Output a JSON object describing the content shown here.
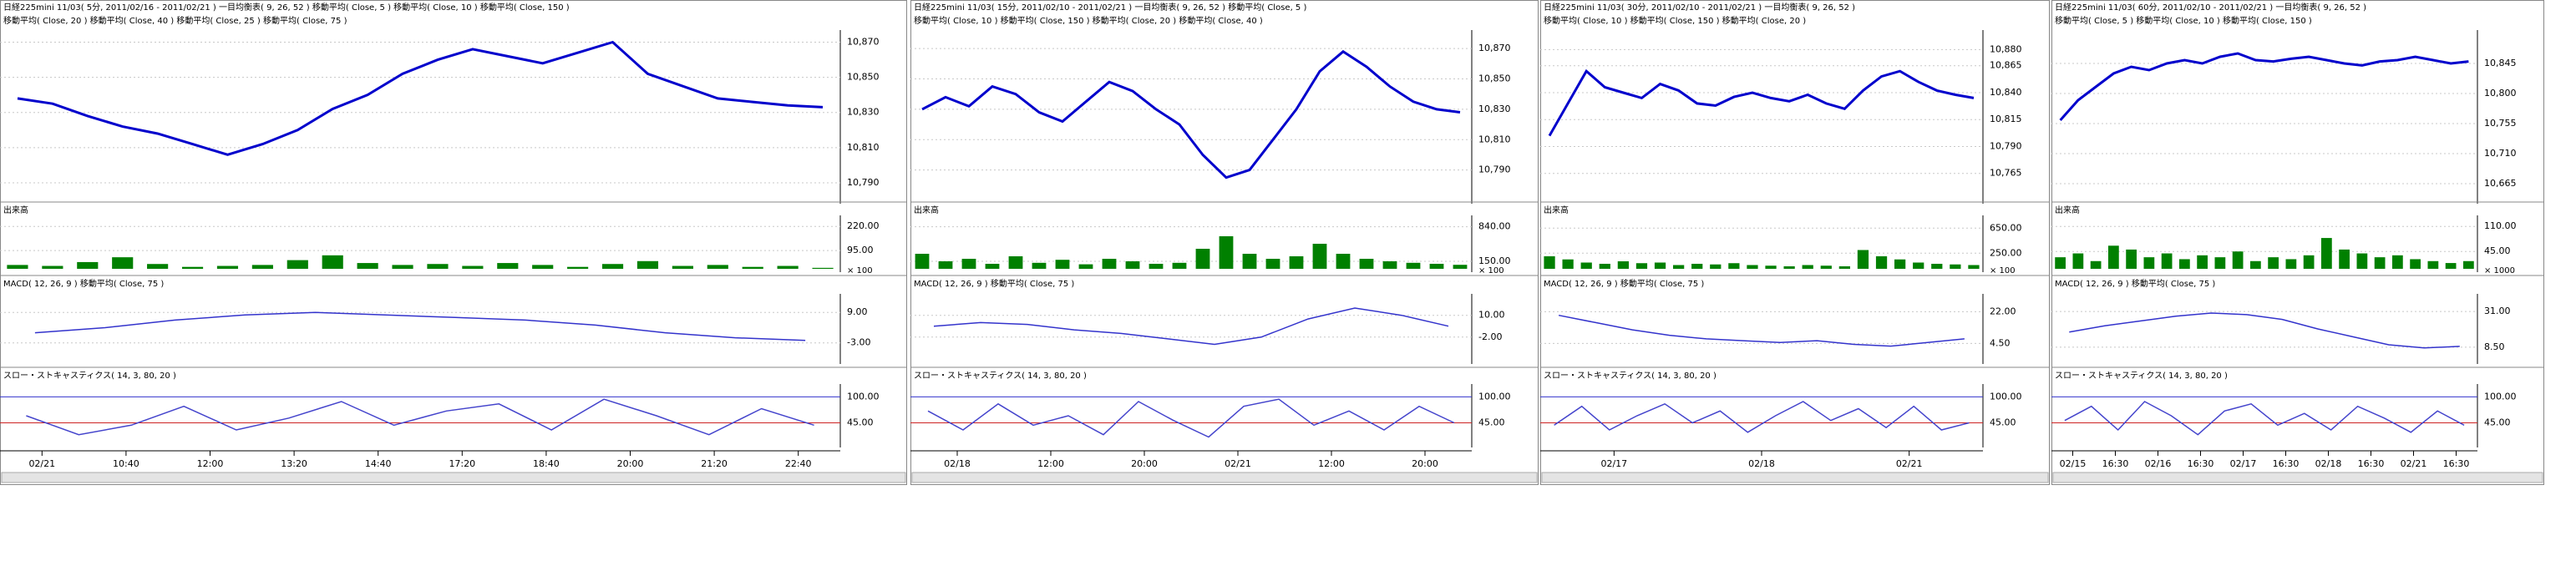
{
  "colors": {
    "price": "#0000cc",
    "volume": "#008000",
    "macd": "#3333cc",
    "stoch": "#4444cc"
  },
  "panels": [
    {
      "header": [
        "日経225mini 11/03( 5分, 2011/02/16 - 2011/02/21 )   一目均衡表( 9, 26, 52 )   移動平均( Close, 5 )   移動平均( Close, 10 )   移動平均( Close, 150 )",
        "移動平均( Close, 20 )   移動平均( Close, 40 )   移動平均( Close, 25 )   移動平均( Close, 75 )"
      ],
      "price": {
        "ylim": [
          10780,
          10875
        ],
        "yticks": [
          {
            "value": 10870,
            "label": "10,870"
          },
          {
            "value": 10850,
            "label": "10,850"
          },
          {
            "value": 10830,
            "label": "10,830"
          },
          {
            "value": 10810,
            "label": "10,810"
          },
          {
            "value": 10790,
            "label": "10,790"
          }
        ],
        "values": [
          10838,
          10835,
          10828,
          10822,
          10818,
          10812,
          10806,
          10812,
          10820,
          10832,
          10840,
          10852,
          10860,
          10866,
          10862,
          10858,
          10864,
          10870,
          10852,
          10845,
          10838,
          10836,
          10834,
          10833
        ]
      },
      "volume": {
        "label": "出来高",
        "unit": "× 100",
        "ylim": [
          0,
          260
        ],
        "yticks": [
          {
            "value": 220,
            "label": "220.00"
          },
          {
            "value": 95,
            "label": "95.00"
          }
        ],
        "values": [
          20,
          15,
          35,
          60,
          25,
          10,
          15,
          20,
          45,
          70,
          30,
          20,
          25,
          15,
          30,
          20,
          10,
          25,
          40,
          15,
          20,
          10,
          15,
          5
        ]
      },
      "macd": {
        "label": "MACD( 12, 26, 9 )   移動平均( Close, 75 )",
        "ylim": [
          -10,
          15
        ],
        "yticks": [
          {
            "value": 9,
            "label": "9.00"
          },
          {
            "value": -3,
            "label": "-3.00"
          }
        ],
        "values": [
          1,
          3,
          6,
          8,
          9,
          8,
          7,
          6,
          4,
          1,
          -1,
          -2
        ]
      },
      "stoch": {
        "label": "スロー・ストキャスティクス( 14, 3, 80, 20 )",
        "ylim": [
          0,
          120
        ],
        "yticks": [
          {
            "value": 100,
            "label": "100.00"
          },
          {
            "value": 45,
            "label": "45.00"
          }
        ],
        "values": [
          60,
          20,
          40,
          80,
          30,
          55,
          90,
          40,
          70,
          85,
          30,
          95,
          60,
          20,
          75,
          40
        ]
      },
      "xlabels": [
        "02/21",
        "10:40",
        "12:00",
        "13:20",
        "14:40",
        "17:20",
        "18:40",
        "20:00",
        "21:20",
        "22:40"
      ]
    },
    {
      "header": [
        "日経225mini 11/03( 15分, 2011/02/10 - 2011/02/21 )   一目均衡表( 9, 26, 52 )   移動平均( Close, 5 )",
        "移動平均( Close, 10 )   移動平均( Close, 150 )   移動平均( Close, 20 )   移動平均( Close, 40 )"
      ],
      "price": {
        "ylim": [
          10770,
          10880
        ],
        "yticks": [
          {
            "value": 10870,
            "label": "10,870"
          },
          {
            "value": 10850,
            "label": "10,850"
          },
          {
            "value": 10830,
            "label": "10,830"
          },
          {
            "value": 10810,
            "label": "10,810"
          },
          {
            "value": 10790,
            "label": "10,790"
          }
        ],
        "values": [
          10830,
          10838,
          10832,
          10845,
          10840,
          10828,
          10822,
          10835,
          10848,
          10842,
          10830,
          10820,
          10800,
          10785,
          10790,
          10810,
          10830,
          10855,
          10868,
          10858,
          10845,
          10835,
          10830,
          10828
        ]
      },
      "volume": {
        "label": "出来高",
        "unit": "× 100",
        "ylim": [
          0,
          1000
        ],
        "yticks": [
          {
            "value": 840,
            "label": "840.00"
          },
          {
            "value": 150,
            "label": "150.00"
          }
        ],
        "values": [
          300,
          150,
          200,
          100,
          250,
          120,
          180,
          90,
          200,
          150,
          100,
          120,
          400,
          650,
          300,
          200,
          250,
          500,
          300,
          200,
          150,
          120,
          100,
          80
        ]
      },
      "macd": {
        "label": "MACD( 12, 26, 9 )   移動平均( Close, 75 )",
        "ylim": [
          -15,
          20
        ],
        "yticks": [
          {
            "value": 10,
            "label": "10.00"
          },
          {
            "value": -2,
            "label": "-2.00"
          }
        ],
        "values": [
          4,
          6,
          5,
          2,
          0,
          -3,
          -6,
          -2,
          8,
          14,
          10,
          4
        ]
      },
      "stoch": {
        "label": "スロー・ストキャスティクス( 14, 3, 80, 20 )",
        "ylim": [
          0,
          120
        ],
        "yticks": [
          {
            "value": 100,
            "label": "100.00"
          },
          {
            "value": 45,
            "label": "45.00"
          }
        ],
        "values": [
          70,
          30,
          85,
          40,
          60,
          20,
          90,
          50,
          15,
          80,
          95,
          40,
          70,
          30,
          80,
          45
        ]
      },
      "xlabels": [
        "02/18",
        "12:00",
        "20:00",
        "02/21",
        "12:00",
        "20:00"
      ]
    },
    {
      "header": [
        "日経225mini 11/03( 30分, 2011/02/10 - 2011/02/21 )   一目均衡表( 9, 26, 52 )",
        "移動平均( Close, 10 )   移動平均( Close, 150 )   移動平均( Close, 20 )"
      ],
      "price": {
        "ylim": [
          10740,
          10895
        ],
        "yticks": [
          {
            "value": 10880,
            "label": "10,880"
          },
          {
            "value": 10865,
            "label": "10,865"
          },
          {
            "value": 10840,
            "label": "10,840"
          },
          {
            "value": 10815,
            "label": "10,815"
          },
          {
            "value": 10790,
            "label": "10,790"
          },
          {
            "value": 10765,
            "label": "10,765"
          }
        ],
        "values": [
          10800,
          10830,
          10860,
          10845,
          10840,
          10835,
          10848,
          10842,
          10830,
          10828,
          10836,
          10840,
          10835,
          10832,
          10838,
          10830,
          10825,
          10842,
          10855,
          10860,
          10850,
          10842,
          10838,
          10835
        ]
      },
      "volume": {
        "label": "出来高",
        "unit": "× 100",
        "ylim": [
          0,
          800
        ],
        "yticks": [
          {
            "value": 650,
            "label": "650.00"
          },
          {
            "value": 250,
            "label": "250.00"
          }
        ],
        "values": [
          200,
          150,
          100,
          80,
          120,
          90,
          100,
          60,
          80,
          70,
          90,
          60,
          50,
          40,
          60,
          50,
          40,
          300,
          200,
          150,
          100,
          80,
          70,
          60
        ]
      },
      "macd": {
        "label": "MACD( 12, 26, 9 )   移動平均( Close, 75 )",
        "ylim": [
          -5,
          30
        ],
        "yticks": [
          {
            "value": 22,
            "label": "22.00"
          },
          {
            "value": 4.5,
            "label": "4.50"
          }
        ],
        "values": [
          20,
          16,
          12,
          9,
          7,
          6,
          5,
          6,
          4,
          3,
          5,
          7
        ]
      },
      "stoch": {
        "label": "スロー・ストキャスティクス( 14, 3, 80, 20 )",
        "ylim": [
          0,
          120
        ],
        "yticks": [
          {
            "value": 100,
            "label": "100.00"
          },
          {
            "value": 45,
            "label": "45.00"
          }
        ],
        "values": [
          40,
          80,
          30,
          60,
          85,
          45,
          70,
          25,
          60,
          90,
          50,
          75,
          35,
          80,
          30,
          45
        ]
      },
      "xlabels": [
        "02/17",
        "02/18",
        "02/21"
      ]
    },
    {
      "header": [
        "日経225mini 11/03( 60分, 2011/02/10 - 2011/02/21 )   一目均衡表( 9, 26, 52 )",
        "移動平均( Close, 5 )   移動平均( Close, 10 )   移動平均( Close, 150 )"
      ],
      "price": {
        "ylim": [
          10640,
          10890
        ],
        "yticks": [
          {
            "value": 10845,
            "label": "10,845"
          },
          {
            "value": 10800,
            "label": "10,800"
          },
          {
            "value": 10755,
            "label": "10,755"
          },
          {
            "value": 10710,
            "label": "10,710"
          },
          {
            "value": 10665,
            "label": "10,665"
          }
        ],
        "values": [
          10760,
          10790,
          10810,
          10830,
          10840,
          10835,
          10845,
          10850,
          10845,
          10855,
          10860,
          10850,
          10848,
          10852,
          10855,
          10850,
          10845,
          10842,
          10848,
          10850,
          10855,
          10850,
          10845,
          10848
        ]
      },
      "volume": {
        "label": "出来高",
        "unit": "× 1000",
        "ylim": [
          0,
          130
        ],
        "yticks": [
          {
            "value": 110,
            "label": "110.00"
          },
          {
            "value": 45,
            "label": "45.00"
          }
        ],
        "values": [
          30,
          40,
          20,
          60,
          50,
          30,
          40,
          25,
          35,
          30,
          45,
          20,
          30,
          25,
          35,
          80,
          50,
          40,
          30,
          35,
          25,
          20,
          15,
          20
        ]
      },
      "macd": {
        "label": "MACD( 12, 26, 9 )   移動平均( Close, 75 )",
        "ylim": [
          0,
          40
        ],
        "yticks": [
          {
            "value": 31,
            "label": "31.00"
          },
          {
            "value": 8.5,
            "label": "8.50"
          }
        ],
        "values": [
          18,
          22,
          25,
          28,
          30,
          29,
          26,
          20,
          15,
          10,
          8,
          9
        ]
      },
      "stoch": {
        "label": "スロー・ストキャスティクス( 14, 3, 80, 20 )",
        "ylim": [
          0,
          120
        ],
        "yticks": [
          {
            "value": 100,
            "label": "100.00"
          },
          {
            "value": 45,
            "label": "45.00"
          }
        ],
        "values": [
          50,
          80,
          30,
          90,
          60,
          20,
          70,
          85,
          40,
          65,
          30,
          80,
          55,
          25,
          70,
          40
        ]
      },
      "xlabels": [
        "02/15",
        "16:30",
        "02/16",
        "16:30",
        "02/17",
        "16:30",
        "02/18",
        "16:30",
        "02/21",
        "16:30"
      ]
    }
  ]
}
